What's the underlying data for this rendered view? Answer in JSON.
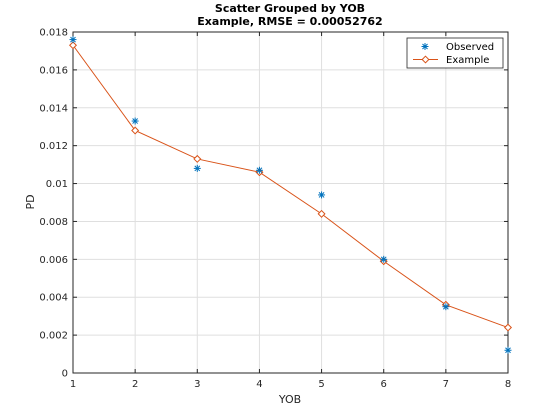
{
  "chart_data": {
    "type": "scatter",
    "title": "Scatter Grouped by YOB",
    "subtitle": "Example, RMSE = 0.00052762",
    "xlabel": "YOB",
    "ylabel": "PD",
    "xlim": [
      1,
      8
    ],
    "ylim": [
      0,
      0.018
    ],
    "grid": true,
    "legend_position": "top-right",
    "x_ticks": [
      "1",
      "2",
      "3",
      "4",
      "5",
      "6",
      "7",
      "8"
    ],
    "y_ticks": [
      "0",
      "0.002",
      "0.004",
      "0.006",
      "0.008",
      "0.01",
      "0.012",
      "0.014",
      "0.016",
      "0.018"
    ],
    "series": [
      {
        "name": "Observed",
        "style": "asterisk-markers",
        "color": "#0072bd",
        "x": [
          1,
          2,
          3,
          4,
          5,
          6,
          7,
          8
        ],
        "values": [
          0.0176,
          0.0133,
          0.0108,
          0.0107,
          0.0094,
          0.006,
          0.0035,
          0.0012
        ]
      },
      {
        "name": "Example",
        "style": "line-diamond-markers",
        "color": "#d95319",
        "x": [
          1,
          2,
          3,
          4,
          5,
          6,
          7,
          8
        ],
        "values": [
          0.0173,
          0.0128,
          0.0113,
          0.0106,
          0.0084,
          0.0059,
          0.0036,
          0.0024
        ]
      }
    ]
  }
}
